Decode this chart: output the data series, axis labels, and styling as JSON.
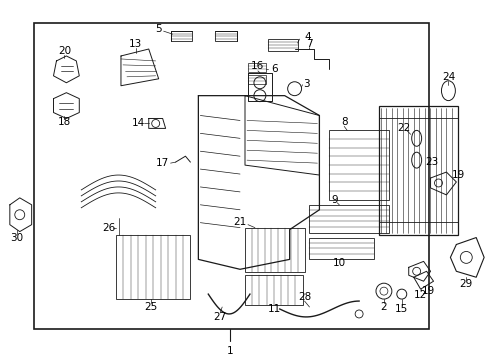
{
  "bg_color": "#ffffff",
  "line_color": "#1a1a1a",
  "text_color": "#000000",
  "fig_width": 4.9,
  "fig_height": 3.6,
  "dpi": 100,
  "fontsize": 7.5
}
